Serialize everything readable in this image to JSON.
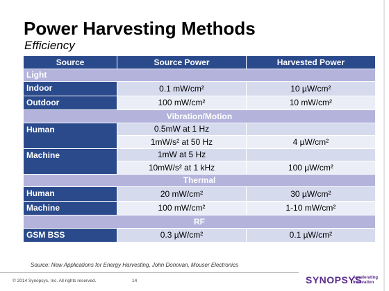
{
  "header": {
    "title": "Power Harvesting Methods",
    "subtitle": "Efficiency"
  },
  "table": {
    "columns": [
      "Source",
      "Source Power",
      "Harvested Power"
    ],
    "sections": [
      {
        "name": "Light",
        "items": [
          {
            "source": "Indoor",
            "measurements": [
              {
                "source_power": "0.1 mW/cm²",
                "harvested_power": "10 µW/cm²"
              }
            ]
          },
          {
            "source": "Outdoor",
            "measurements": [
              {
                "source_power": "100 mW/cm²",
                "harvested_power": "10 mW/cm²"
              }
            ]
          }
        ]
      },
      {
        "name": "Vibration/Motion",
        "items": [
          {
            "source": "Human",
            "measurements": [
              {
                "source_power": "0.5mW at 1 Hz"
              },
              {
                "source_power": "1mW/s² at 50 Hz",
                "harvested_power": "4 µW/cm²"
              }
            ]
          },
          {
            "source": "Machine",
            "measurements": [
              {
                "source_power": "1mW at 5 Hz"
              },
              {
                "source_power": "10mW/s² at 1 kHz",
                "harvested_power": "100 µW/cm²"
              }
            ]
          }
        ]
      },
      {
        "name": "Thermal",
        "items": [
          {
            "source": "Human",
            "measurements": [
              {
                "source_power": "20 mW/cm²",
                "harvested_power": "30 µW/cm²"
              }
            ]
          },
          {
            "source": "Machine",
            "measurements": [
              {
                "source_power": "100 mW/cm²",
                "harvested_power": "1-10 mW/cm²"
              }
            ]
          }
        ]
      },
      {
        "name": "RF",
        "items": [
          {
            "source": "GSM BSS",
            "measurements": [
              {
                "source_power": "0.3 µW/cm²",
                "harvested_power": "0.1 µW/cm²"
              }
            ]
          }
        ]
      }
    ]
  },
  "footer": {
    "source_note": "Source: New Applications for Energy Harvesting, John Donovan, Mouser Electronics",
    "copyright": "© 2014 Synopsys, Inc. All rights reserved.",
    "page": 14,
    "logo": "SYNOPSYS",
    "tagline": [
      "Accelerating",
      "Innovation"
    ]
  }
}
